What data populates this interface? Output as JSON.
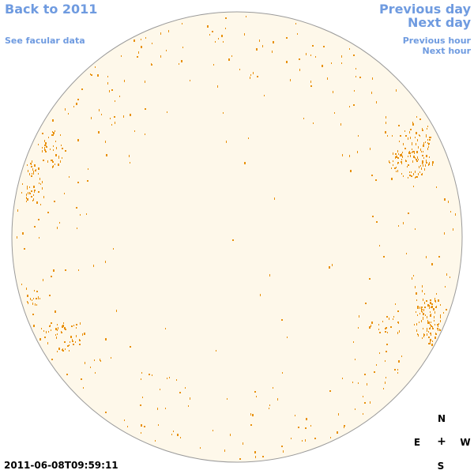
{
  "nav": {
    "back_label": "Back to 2011",
    "facular_label": "See facular data",
    "prev_day_label": "Previous day",
    "next_day_label": "Next day",
    "prev_hour_label": "Previous hour",
    "next_hour_label": "Next hour"
  },
  "image": {
    "timestamp": "2011-06-08T09:59:11",
    "disk_fill_color": "#fef8ea",
    "disk_stroke_color": "#9a9a9a",
    "facula_color": "#e8900a"
  },
  "compass": {
    "north": "N",
    "south": "S",
    "east": "E",
    "west": "W",
    "center": "+"
  },
  "colors": {
    "link": "#6f9be0"
  }
}
